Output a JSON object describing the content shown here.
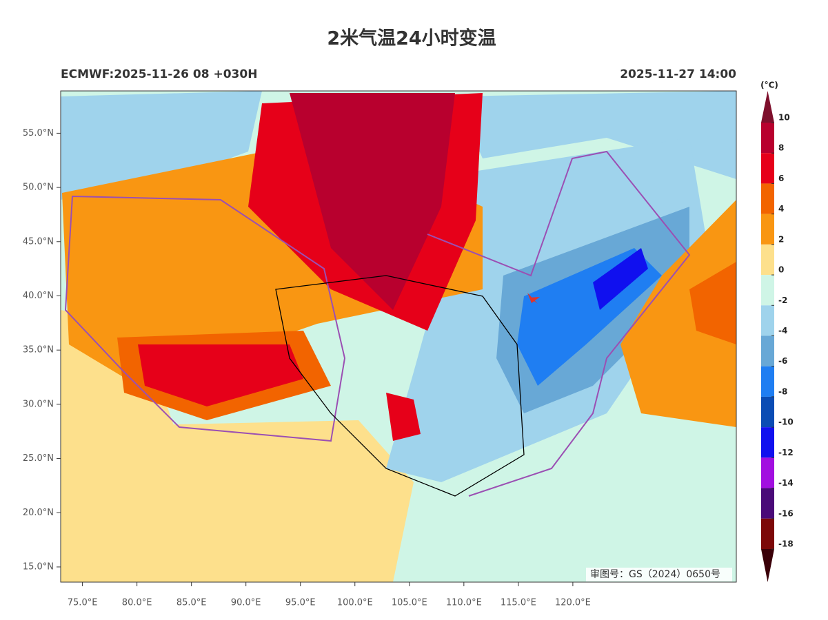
{
  "header": {
    "title": "2米气温24小时变温",
    "model_run": "ECMWF:2025-11-26 08 +030H",
    "valid_time": "2025-11-27 14:00"
  },
  "map": {
    "lonlim": [
      73,
      135
    ],
    "latlim": [
      13.6,
      58.9
    ],
    "lon_ticks": [
      {
        "value": 75,
        "label": "75.0°E"
      },
      {
        "value": 80,
        "label": "80.0°E"
      },
      {
        "value": 85,
        "label": "85.0°E"
      },
      {
        "value": 90,
        "label": "90.0°E"
      },
      {
        "value": 95,
        "label": "95.0°E"
      },
      {
        "value": 100,
        "label": "100.0°E"
      },
      {
        "value": 105,
        "label": "105.0°E"
      },
      {
        "value": 110,
        "label": "110.0°E"
      },
      {
        "value": 115,
        "label": "115.0°E"
      },
      {
        "value": 120,
        "label": "120.0°E"
      }
    ],
    "lat_ticks": [
      {
        "value": 15,
        "label": "15.0°N"
      },
      {
        "value": 20,
        "label": "20.0°N"
      },
      {
        "value": 25,
        "label": "25.0°N"
      },
      {
        "value": 30,
        "label": "30.0°N"
      },
      {
        "value": 35,
        "label": "35.0°N"
      },
      {
        "value": 40,
        "label": "40.0°N"
      },
      {
        "value": 45,
        "label": "45.0°N"
      },
      {
        "value": 50,
        "label": "50.0°N"
      },
      {
        "value": 55,
        "label": "55.0°N"
      }
    ],
    "approval": "审图号：GS（2024）0650号"
  },
  "colorbar": {
    "unit": "(°C)",
    "levels": [
      10,
      8,
      6,
      4,
      2,
      0,
      -2,
      -4,
      -6,
      -8,
      -10,
      -12,
      -14,
      -16,
      -18
    ],
    "colors": [
      "#7e0f2c",
      "#b8002e",
      "#e60019",
      "#f26400",
      "#f99612",
      "#fde08c",
      "#cff5e6",
      "#9fd3ec",
      "#68a8d6",
      "#1f7ef2",
      "#0a4cb4",
      "#1010ef",
      "#a20fe0",
      "#4a0a78",
      "#7c0808",
      "#3a0008"
    ]
  }
}
